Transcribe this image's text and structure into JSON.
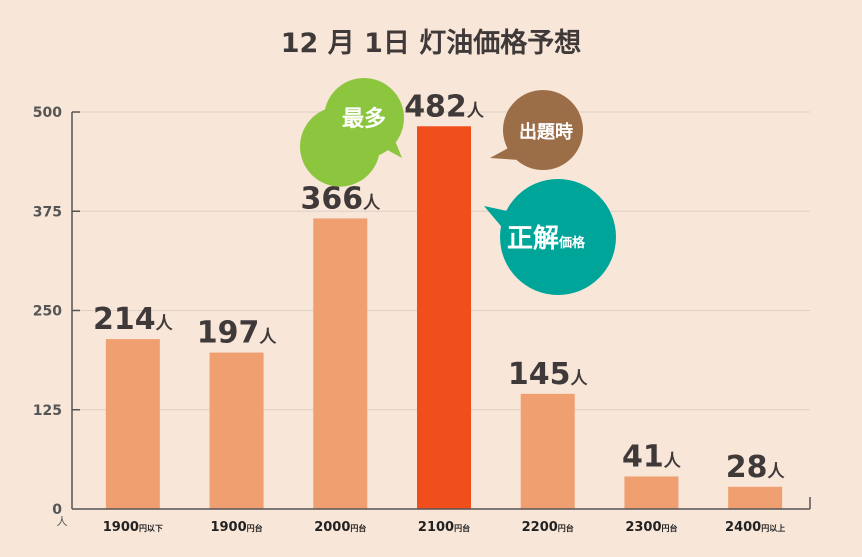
{
  "chart_data": {
    "type": "bar",
    "title": "12 月 1日 灯油価格予想",
    "categories": [
      {
        "value": "1900",
        "suffix": "円以下"
      },
      {
        "value": "1900",
        "suffix": "円台"
      },
      {
        "value": "2000",
        "suffix": "円台"
      },
      {
        "value": "2100",
        "suffix": "円台"
      },
      {
        "value": "2200",
        "suffix": "円台"
      },
      {
        "value": "2300",
        "suffix": "円台"
      },
      {
        "value": "2400",
        "suffix": "円以上"
      }
    ],
    "values": [
      214,
      197,
      366,
      482,
      145,
      41,
      28
    ],
    "value_unit": "人",
    "y_axis": {
      "ticks": [
        "0",
        "125",
        "250",
        "375",
        "500"
      ],
      "unit": "人",
      "min": 0,
      "max": 500
    },
    "highlight_index": 3,
    "colors": {
      "bar": "#f0a070",
      "highlight": "#f04e1a",
      "gridline": "#ddd0c6"
    },
    "callouts": {
      "most": {
        "label": "最多",
        "color": "#8cc63f"
      },
      "at_question": {
        "label": "出題時",
        "color": "#9b6e47"
      },
      "correct": {
        "label_main": "正解",
        "label_sub": "価格",
        "color": "#00a599"
      }
    }
  }
}
